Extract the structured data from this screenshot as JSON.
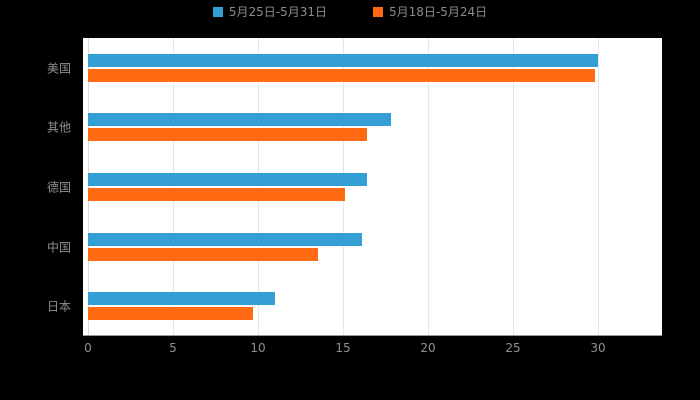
{
  "chart_data": {
    "type": "bar",
    "orientation": "horizontal",
    "title": "",
    "xlabel": "",
    "ylabel": "",
    "categories": [
      "美国",
      "其他",
      "德国",
      "中国",
      "日本"
    ],
    "series": [
      {
        "name": "5月25日-5月31日",
        "color": "#339FD4",
        "values": [
          30,
          17.8,
          16.4,
          16.1,
          11.0
        ]
      },
      {
        "name": "5月18日-5月24日",
        "color": "#FF6A13",
        "values": [
          29.8,
          16.4,
          15.1,
          13.5,
          9.7
        ]
      }
    ],
    "xticks": [
      0,
      5,
      10,
      15,
      20,
      25,
      30
    ],
    "xlim": [
      0,
      33.5
    ],
    "grid": true,
    "legend_position": "top"
  },
  "colors": {
    "background": "#000000",
    "plot_background": "#ffffff",
    "grid": "#e6e6e6",
    "zero_line": "#d9d9d9",
    "axis": "#999999",
    "tick_text": "#8f8f8f",
    "category_text": "#8f8f8f",
    "legend_text": "#8a8a8a"
  }
}
